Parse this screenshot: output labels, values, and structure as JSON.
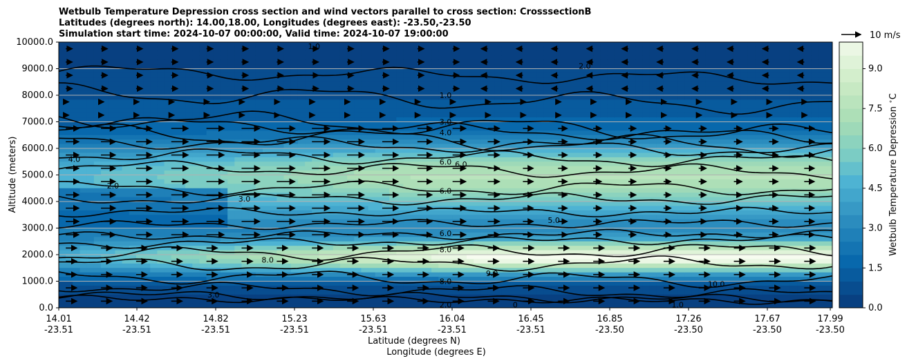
{
  "colors": {
    "low": "#084081",
    "mid_low": "#2b8cbe",
    "mid": "#4eb3d3",
    "mid_high": "#7bccc4",
    "high": "#a8ddb5",
    "top": "#f7fcf0",
    "contour": "#000000",
    "grid": "#b0b0b0"
  },
  "chart_data": {
    "type": "contourf-cross-section",
    "title_lines": [
      "Wetbulb Temperature Depression cross section and wind vectors parallel to cross section: CrosssectionB",
      "Latitudes (degrees north): 14.00,18.00, Longitudes (degrees east): -23.50,-23.50",
      "Simulation start time: 2024-10-07 00:00:00, Valid time: 2024-10-07 19:00:00"
    ],
    "ylabel": "Altitude (meters)",
    "xlabel_lat": "Latitude (degrees N)",
    "xlabel_lon": "Longitude (degrees E)",
    "ylim": [
      0,
      10000
    ],
    "yticks": [
      "0.0",
      "1000.0",
      "2000.0",
      "3000.0",
      "4000.0",
      "5000.0",
      "6000.0",
      "7000.0",
      "8000.0",
      "9000.0",
      "10000.0"
    ],
    "xtick_lats": [
      "14.01",
      "14.42",
      "14.82",
      "15.23",
      "15.63",
      "16.04",
      "16.45",
      "16.85",
      "17.26",
      "17.67",
      "17.99"
    ],
    "xtick_lons": [
      "-23.51",
      "-23.51",
      "-23.51",
      "-23.51",
      "-23.51",
      "-23.51",
      "-23.51",
      "-23.50",
      "-23.50",
      "-23.50",
      "-23.50"
    ],
    "colorbar": {
      "label": "Wetbulb Temperature Depression $^\\circ$C",
      "range": [
        0,
        10
      ],
      "ticks": [
        "0.0",
        "1.5",
        "3.0",
        "4.5",
        "6.0",
        "7.5",
        "9.0"
      ],
      "levels": 20
    },
    "quiver_key": "10 m/s",
    "contour_labels": [
      "1.0",
      "1.0",
      "2.0",
      "3.0",
      "4.0",
      "4.0",
      "2.0",
      "6.0",
      "6.0",
      "6.0",
      "3.0",
      "5.0",
      "6.0",
      "8.0",
      "8.0",
      "9.0",
      "8.0",
      "10.0",
      "3.0",
      "2.0",
      "1.0",
      "0"
    ]
  }
}
